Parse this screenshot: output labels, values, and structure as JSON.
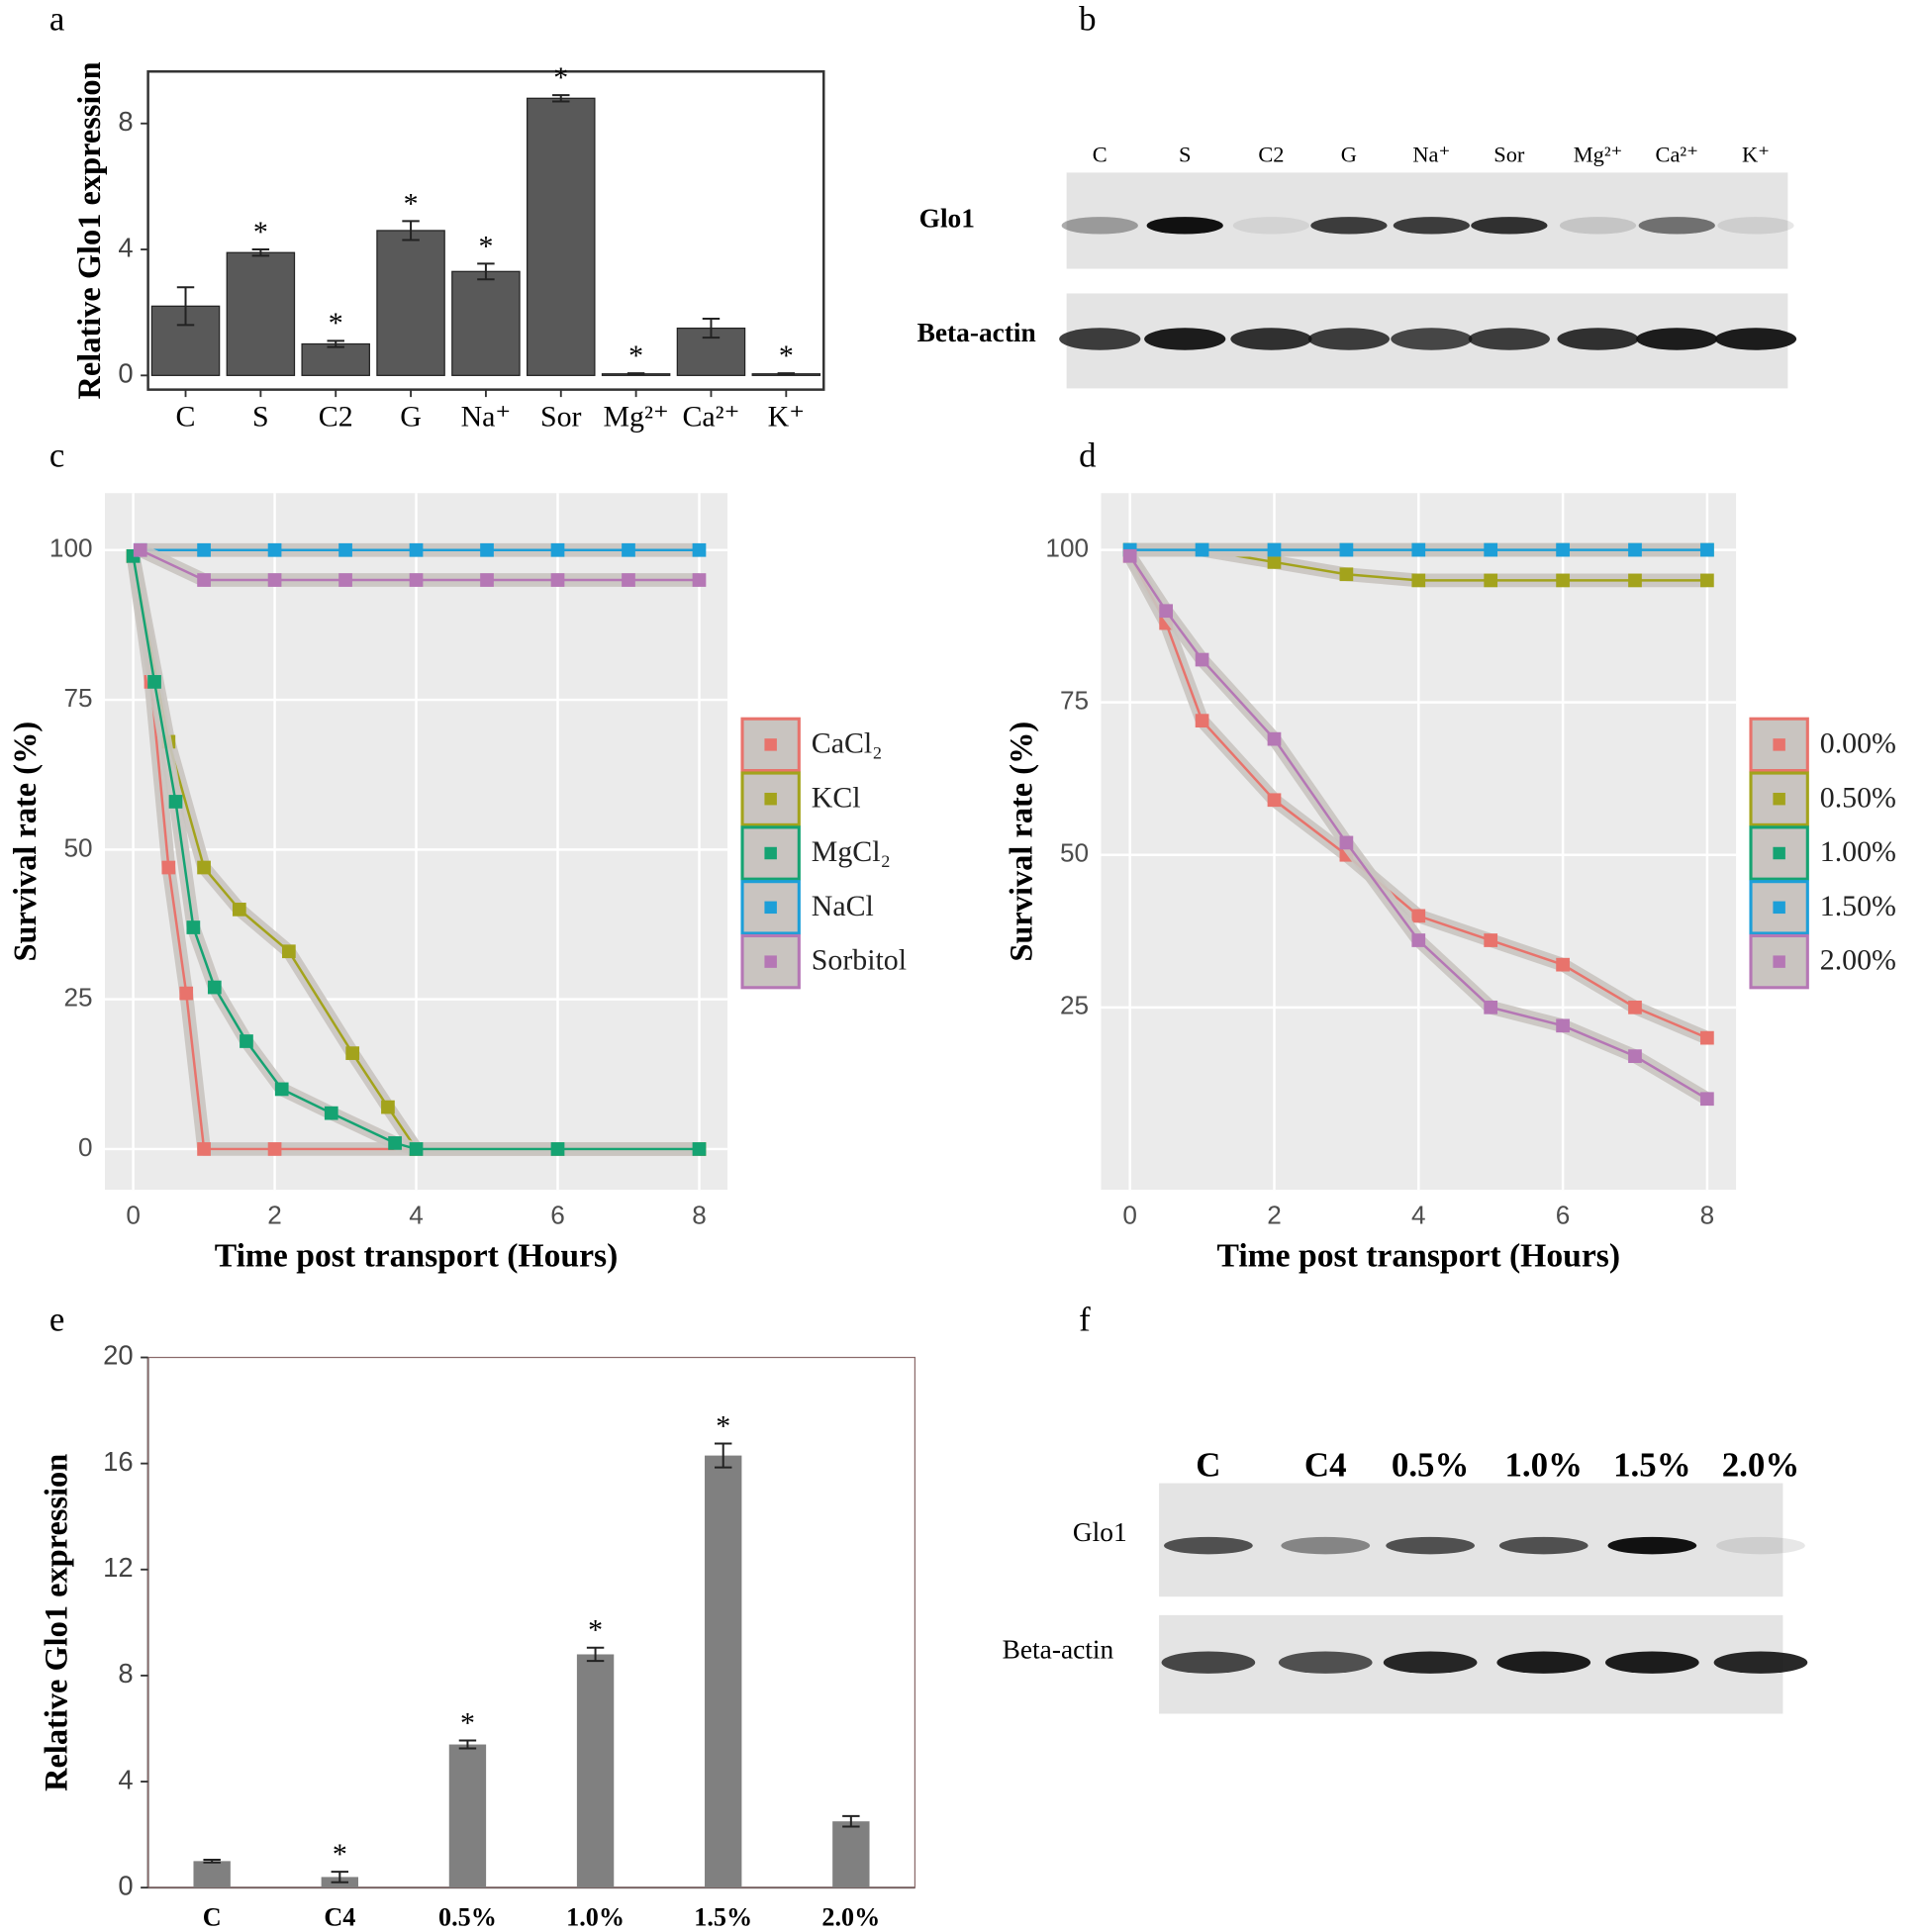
{
  "chart_data": [
    {
      "panel": "a",
      "type": "bar",
      "ylabel": "Relative Glo1 expression",
      "categories": [
        "C",
        "S",
        "C2",
        "G",
        "Na⁺",
        "Sor",
        "Mg²⁺",
        "Ca²⁺",
        "K⁺"
      ],
      "values": [
        2.2,
        3.9,
        1.0,
        4.6,
        3.3,
        8.8,
        0.05,
        1.5,
        0.05
      ],
      "errors": [
        0.6,
        0.1,
        0.1,
        0.3,
        0.25,
        0.1,
        0.02,
        0.3,
        0.02
      ],
      "annotations": [
        null,
        "*",
        "*",
        "*",
        "*",
        "*",
        "*",
        null,
        "*"
      ],
      "color": "#595959",
      "ylim": [
        -0.45,
        9.65
      ],
      "yticks": [
        0,
        4,
        8
      ]
    },
    {
      "panel": "c",
      "type": "line",
      "xlabel": "Time post transport (Hours)",
      "ylabel": "Survival rate (%)",
      "series": [
        {
          "name": "CaCl₂",
          "color": "#e8736c",
          "x": [
            0,
            0.25,
            0.5,
            0.75,
            1,
            2,
            4,
            6,
            8
          ],
          "values": [
            99,
            78,
            47,
            26,
            0,
            0,
            0,
            0,
            0
          ]
        },
        {
          "name": "KCl",
          "color": "#a3a31c",
          "x": [
            0,
            0.5,
            1,
            1.5,
            2.2,
            3.1,
            3.6,
            4,
            6,
            8
          ],
          "values": [
            99,
            68,
            47,
            40,
            33,
            16,
            7,
            0,
            0,
            0
          ]
        },
        {
          "name": "MgCl₂",
          "color": "#15a372",
          "x": [
            0,
            0.3,
            0.6,
            0.85,
            1.15,
            1.6,
            2.1,
            2.8,
            3.7,
            4,
            6,
            8
          ],
          "values": [
            99,
            78,
            58,
            37,
            27,
            18,
            10,
            6,
            1,
            0,
            0,
            0
          ]
        },
        {
          "name": "NaCl",
          "color": "#1d9fd8",
          "x": [
            0.1,
            1,
            2,
            3,
            4,
            5,
            6,
            7,
            8
          ],
          "values": [
            100,
            100,
            100,
            100,
            100,
            100,
            100,
            100,
            100
          ]
        },
        {
          "name": "Sorbitol",
          "color": "#b577b5",
          "x": [
            0.1,
            1,
            2,
            3,
            4,
            5,
            6,
            7,
            8
          ],
          "values": [
            100,
            95,
            95,
            95,
            95,
            95,
            95,
            95,
            95
          ]
        }
      ],
      "xlim": [
        -0.4,
        8.4
      ],
      "xticks": [
        0,
        2,
        4,
        6,
        8
      ],
      "ylim": [
        -6.8,
        109.5
      ],
      "yticks": [
        0,
        25,
        50,
        75,
        100
      ],
      "grid": true,
      "legend": "right"
    },
    {
      "panel": "d",
      "type": "line",
      "xlabel": "Time post transport (Hours)",
      "ylabel": "Survival rate (%)",
      "series": [
        {
          "name": "0.00%",
          "color": "#e8736c",
          "x": [
            0,
            0.5,
            1,
            2,
            3,
            4,
            5,
            6,
            7,
            8
          ],
          "values": [
            99,
            88,
            72,
            59,
            50,
            40,
            36,
            32,
            25,
            20
          ]
        },
        {
          "name": "0.50%",
          "color": "#a3a31c",
          "x": [
            0,
            1,
            2,
            3,
            4,
            5,
            6,
            7,
            8
          ],
          "values": [
            100,
            100,
            98,
            96,
            95,
            95,
            95,
            95,
            95
          ]
        },
        {
          "name": "1.00%",
          "color": "#15a372",
          "x": [
            0,
            1,
            2,
            3,
            4,
            5,
            6,
            7,
            8
          ],
          "values": [
            100,
            100,
            100,
            100,
            100,
            100,
            100,
            100,
            100
          ]
        },
        {
          "name": "1.50%",
          "color": "#1d9fd8",
          "x": [
            0,
            1,
            2,
            3,
            4,
            5,
            6,
            7,
            8
          ],
          "values": [
            100,
            100,
            100,
            100,
            100,
            100,
            100,
            100,
            100
          ]
        },
        {
          "name": "2.00%",
          "color": "#b577b5",
          "x": [
            0,
            0.5,
            1,
            2,
            3,
            4,
            5,
            6,
            7,
            8
          ],
          "values": [
            99,
            90,
            82,
            69,
            52,
            36,
            25,
            22,
            17,
            10
          ]
        }
      ],
      "xlim": [
        -0.4,
        8.4
      ],
      "xticks": [
        0,
        2,
        4,
        6,
        8
      ],
      "ylim": [
        -4.9,
        109.3
      ],
      "yticks": [
        25,
        50,
        75,
        100
      ],
      "grid": true,
      "legend": "right"
    },
    {
      "panel": "e",
      "type": "bar",
      "ylabel": "Relative Glo1 expression",
      "categories": [
        "C",
        "C4",
        "0.5%",
        "1.0%",
        "1.5%",
        "2.0%"
      ],
      "values": [
        1.0,
        0.4,
        5.4,
        8.8,
        16.3,
        2.5
      ],
      "errors": [
        0.05,
        0.2,
        0.15,
        0.25,
        0.45,
        0.2
      ],
      "annotations": [
        null,
        "*",
        "*",
        "*",
        "*",
        null
      ],
      "color": "#808080",
      "ylim": [
        0,
        20
      ],
      "yticks": [
        0,
        4,
        8,
        12,
        16,
        20
      ]
    }
  ],
  "blots": [
    {
      "panel": "b",
      "lanes": [
        "C",
        "S",
        "C2",
        "G",
        "Na⁺",
        "Sor",
        "Mg²⁺",
        "Ca²⁺",
        "K⁺"
      ],
      "rows": [
        "Glo1",
        "Beta-actin"
      ]
    },
    {
      "panel": "f",
      "lanes": [
        "C",
        "C4",
        "0.5%",
        "1.0%",
        "1.5%",
        "2.0%"
      ],
      "rows": [
        "Glo1",
        "Beta-actin"
      ]
    }
  ]
}
